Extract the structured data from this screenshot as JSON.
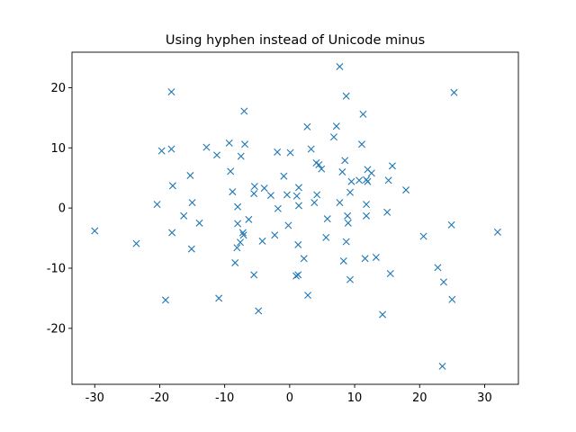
{
  "chart_data": {
    "type": "scatter",
    "title": "Using hyphen instead of Unicode minus",
    "xlabel": "",
    "ylabel": "",
    "xlim": [
      -33.5,
      35.2
    ],
    "ylim": [
      -29.3,
      25.9
    ],
    "xticks": [
      -30,
      -20,
      -10,
      0,
      10,
      20,
      30
    ],
    "xtick_labels": [
      "-30",
      "-20",
      "-10",
      "0",
      "10",
      "20",
      "30"
    ],
    "yticks": [
      -20,
      -10,
      0,
      10,
      20
    ],
    "ytick_labels": [
      "-20",
      "-10",
      "0",
      "10",
      "20"
    ],
    "marker": "x",
    "grid": false,
    "series": [
      {
        "color": "#1f77b4",
        "points": [
          [
            -30.0,
            -3.8
          ],
          [
            -23.6,
            -5.9
          ],
          [
            -20.4,
            0.6
          ],
          [
            -19.7,
            9.5
          ],
          [
            -19.1,
            -15.3
          ],
          [
            -18.2,
            19.3
          ],
          [
            -18.2,
            9.8
          ],
          [
            -18.0,
            3.7
          ],
          [
            -18.1,
            -4.1
          ],
          [
            -16.3,
            -1.3
          ],
          [
            -15.3,
            5.4
          ],
          [
            -15.0,
            0.9
          ],
          [
            -15.1,
            -6.8
          ],
          [
            -13.9,
            -2.5
          ],
          [
            -12.8,
            10.1
          ],
          [
            -11.2,
            8.8
          ],
          [
            -10.9,
            -15.0
          ],
          [
            -9.3,
            10.8
          ],
          [
            -9.1,
            6.1
          ],
          [
            -8.8,
            2.7
          ],
          [
            -8.4,
            -9.1
          ],
          [
            -8.1,
            -6.6
          ],
          [
            -8.0,
            0.2
          ],
          [
            -8.0,
            -2.6
          ],
          [
            -7.6,
            -5.7
          ],
          [
            -7.5,
            8.6
          ],
          [
            -7.2,
            -4.1
          ],
          [
            -7.0,
            16.1
          ],
          [
            -6.9,
            10.6
          ],
          [
            -7.1,
            -4.5
          ],
          [
            -6.3,
            -1.9
          ],
          [
            -5.4,
            3.6
          ],
          [
            -5.5,
            2.4
          ],
          [
            -5.5,
            -11.1
          ],
          [
            -4.8,
            -17.1
          ],
          [
            -4.2,
            -5.5
          ],
          [
            -3.9,
            3.3
          ],
          [
            -2.9,
            2.1
          ],
          [
            -2.3,
            -4.5
          ],
          [
            -1.9,
            9.3
          ],
          [
            -1.8,
            -0.1
          ],
          [
            -0.9,
            5.3
          ],
          [
            -0.4,
            2.2
          ],
          [
            -0.2,
            -2.9
          ],
          [
            0.1,
            9.2
          ],
          [
            1.0,
            -11.3
          ],
          [
            1.1,
            2.0
          ],
          [
            1.3,
            -11.1
          ],
          [
            1.3,
            -6.1
          ],
          [
            1.4,
            3.4
          ],
          [
            1.4,
            0.4
          ],
          [
            2.2,
            -8.4
          ],
          [
            2.7,
            13.5
          ],
          [
            2.8,
            -14.5
          ],
          [
            3.3,
            9.8
          ],
          [
            3.8,
            0.9
          ],
          [
            4.2,
            2.2
          ],
          [
            4.1,
            7.5
          ],
          [
            4.5,
            7.2
          ],
          [
            4.9,
            6.5
          ],
          [
            5.6,
            -4.9
          ],
          [
            5.8,
            -1.8
          ],
          [
            6.8,
            11.8
          ],
          [
            7.2,
            13.6
          ],
          [
            7.7,
            23.5
          ],
          [
            7.7,
            0.9
          ],
          [
            8.1,
            6.0
          ],
          [
            8.3,
            -8.8
          ],
          [
            8.5,
            7.9
          ],
          [
            8.7,
            18.6
          ],
          [
            8.7,
            -5.6
          ],
          [
            8.9,
            -1.3
          ],
          [
            9.0,
            -2.5
          ],
          [
            9.3,
            -11.9
          ],
          [
            9.3,
            2.6
          ],
          [
            9.5,
            4.4
          ],
          [
            10.7,
            4.6
          ],
          [
            11.1,
            10.6
          ],
          [
            11.3,
            15.6
          ],
          [
            11.6,
            -8.4
          ],
          [
            11.8,
            0.6
          ],
          [
            11.8,
            -1.3
          ],
          [
            11.8,
            4.7
          ],
          [
            12.0,
            6.4
          ],
          [
            12.0,
            4.4
          ],
          [
            12.6,
            5.8
          ],
          [
            13.3,
            -8.2
          ],
          [
            14.3,
            -17.7
          ],
          [
            15.0,
            -0.7
          ],
          [
            15.2,
            4.6
          ],
          [
            15.5,
            -10.9
          ],
          [
            15.8,
            7.0
          ],
          [
            17.9,
            3.0
          ],
          [
            20.6,
            -4.7
          ],
          [
            22.8,
            -9.9
          ],
          [
            23.5,
            -26.3
          ],
          [
            23.7,
            -12.3
          ],
          [
            24.9,
            -2.8
          ],
          [
            25.0,
            -15.2
          ],
          [
            25.3,
            19.2
          ],
          [
            32.0,
            -4.0
          ]
        ]
      }
    ]
  }
}
